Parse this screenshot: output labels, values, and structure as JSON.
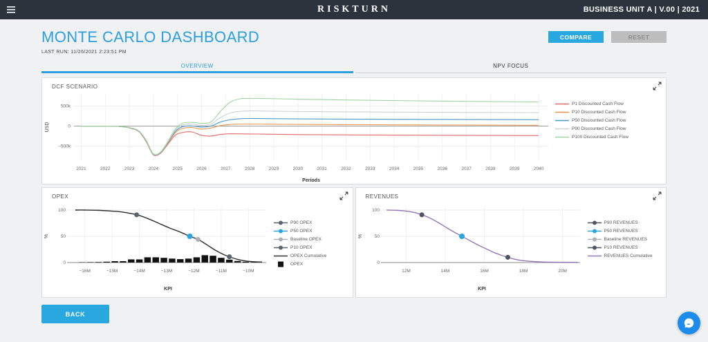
{
  "topbar": {
    "brand": "RISKTURN",
    "context": "BUSINESS UNIT A | V.00 | 2021"
  },
  "header": {
    "title": "MONTE CARLO DASHBOARD",
    "last_run": "LAST RUN: 11/26/2021 2:23:51 PM",
    "compare_label": "COMPARE",
    "reset_label": "RESET",
    "help_label": "?"
  },
  "tabs": [
    {
      "label": "OVERVIEW",
      "active": true
    },
    {
      "label": "NPV FOCUS",
      "active": false
    }
  ],
  "footer": {
    "back_label": "BACK"
  },
  "colors": {
    "accent_blue": "#29a8e0",
    "title_blue": "#2b9fdf",
    "topbar_bg": "#2c333d",
    "panel_border": "#dcdcdc",
    "chat_blue": "#1d8ceb"
  },
  "chart_data": [
    {
      "id": "dcf",
      "type": "line",
      "title": "DCF SCENARIO",
      "xlabel": "Periods",
      "ylabel": "USD",
      "xlim": [
        2020.7,
        2040.4
      ],
      "ylim": [
        -850,
        800
      ],
      "grid": true,
      "legend_position": "right",
      "xticks": [
        2021,
        2022,
        2023,
        2024,
        2025,
        2026,
        2027,
        2028,
        2029,
        2030,
        2031,
        2032,
        2033,
        2034,
        2035,
        2036,
        2037,
        2038,
        2039,
        2040
      ],
      "yticks": [
        {
          "v": 500,
          "label": "500k"
        },
        {
          "v": 0,
          "label": "0"
        },
        {
          "v": -500,
          "label": "−500k"
        }
      ],
      "x": [
        2021,
        2022,
        2022.5,
        2023,
        2023.4,
        2023.7,
        2024,
        2024.3,
        2024.6,
        2024.9,
        2025.2,
        2025.6,
        2026,
        2026.4,
        2026.8,
        2027.2,
        2027.6,
        2028,
        2028.5,
        2029,
        2030,
        2032,
        2035,
        2040
      ],
      "unit": "thousand USD",
      "series": [
        {
          "name": "P1 Discounted Cash Flow",
          "color": "#e26868",
          "values": [
            0,
            0,
            -5,
            -46,
            -140,
            -390,
            -715,
            -672,
            -450,
            -230,
            -160,
            -145,
            -230,
            -245,
            -205,
            -190,
            -192,
            -195,
            -198,
            -203,
            -210,
            -218,
            -226,
            -235
          ]
        },
        {
          "name": "P10 Discounted Cash Flow",
          "color": "#e8954f",
          "values": [
            0,
            0,
            -5,
            -43,
            -135,
            -380,
            -705,
            -662,
            -425,
            -170,
            -60,
            -35,
            -75,
            -45,
            15,
            40,
            50,
            52,
            50,
            47,
            43,
            37,
            30,
            20
          ]
        },
        {
          "name": "P50 Discounted Cash Flow",
          "color": "#4a98c9",
          "values": [
            0,
            0,
            -5,
            -40,
            -130,
            -370,
            -700,
            -655,
            -410,
            -140,
            -15,
            5,
            -25,
            5,
            105,
            160,
            183,
            190,
            188,
            185,
            180,
            174,
            168,
            160
          ]
        },
        {
          "name": "P90 Discounted Cash Flow",
          "color": "#c9d2d8",
          "values": [
            0,
            0,
            -5,
            -38,
            -125,
            -360,
            -695,
            -648,
            -395,
            -110,
            30,
            50,
            20,
            55,
            220,
            330,
            368,
            378,
            376,
            371,
            364,
            355,
            346,
            335
          ]
        },
        {
          "name": "P100 Discounted Cash Flow",
          "color": "#9fd4a2",
          "values": [
            0,
            0,
            -5,
            -35,
            -120,
            -350,
            -690,
            -640,
            -380,
            -80,
            70,
            95,
            70,
            110,
            380,
            600,
            680,
            690,
            688,
            682,
            670,
            650,
            628,
            600
          ]
        }
      ]
    },
    {
      "id": "opex",
      "type": "mixed",
      "title": "OPEX",
      "xlabel": "KPI",
      "ylabel": "%",
      "xlim": [
        -16.55,
        -9.35
      ],
      "ylim": [
        0,
        100
      ],
      "grid": true,
      "legend_position": "right",
      "xticks": [
        {
          "v": -16,
          "label": "−16M"
        },
        {
          "v": -15,
          "label": "−15M"
        },
        {
          "v": -14,
          "label": "−14M"
        },
        {
          "v": -13,
          "label": "−13M"
        },
        {
          "v": -12,
          "label": "−12M"
        },
        {
          "v": -11,
          "label": "−11M"
        },
        {
          "v": -10,
          "label": "−10M"
        }
      ],
      "yticks": [
        {
          "v": 0,
          "label": "0"
        },
        {
          "v": 50,
          "label": "50"
        },
        {
          "v": 100,
          "label": "100"
        }
      ],
      "markers": [
        {
          "name": "P90 OPEX",
          "color": "#5a646c",
          "x": -14.1,
          "y": 91
        },
        {
          "name": "P50 OPEX",
          "color": "#2aa5e0",
          "x": -12.15,
          "y": 50
        },
        {
          "name": "Baseline OPEX",
          "color": "#aab1b7",
          "x": -11.85,
          "y": 44
        },
        {
          "name": "P10 OPEX",
          "color": "#5a646c",
          "x": -10.7,
          "y": 11
        }
      ],
      "cumulative": {
        "name": "OPEX Cumulative",
        "color": "#2b2b2b",
        "points": [
          [
            -16.35,
            100
          ],
          [
            -16,
            100
          ],
          [
            -15.5,
            99.5
          ],
          [
            -15,
            98
          ],
          [
            -14.6,
            96
          ],
          [
            -14.1,
            91
          ],
          [
            -13.7,
            84
          ],
          [
            -13.3,
            75
          ],
          [
            -12.9,
            66
          ],
          [
            -12.5,
            58
          ],
          [
            -12.15,
            50
          ],
          [
            -11.85,
            44
          ],
          [
            -11.5,
            33
          ],
          [
            -11.2,
            23
          ],
          [
            -10.9,
            15
          ],
          [
            -10.7,
            11
          ],
          [
            -10.4,
            6
          ],
          [
            -10.1,
            3
          ],
          [
            -9.8,
            1.5
          ],
          [
            -9.5,
            1
          ]
        ]
      },
      "bars": {
        "name": "OPEX",
        "color": "#121212",
        "width": 0.24,
        "points": [
          [
            -16.1,
            0.6
          ],
          [
            -15.8,
            0.8
          ],
          [
            -15.5,
            1
          ],
          [
            -15.2,
            1.6
          ],
          [
            -14.9,
            2.6
          ],
          [
            -14.6,
            2.6
          ],
          [
            -14.3,
            6
          ],
          [
            -14,
            6
          ],
          [
            -13.7,
            10
          ],
          [
            -13.4,
            10
          ],
          [
            -13.1,
            9
          ],
          [
            -12.8,
            7.5
          ],
          [
            -12.5,
            6.5
          ],
          [
            -12.2,
            7.5
          ],
          [
            -11.9,
            10
          ],
          [
            -11.6,
            14
          ],
          [
            -11.3,
            13
          ],
          [
            -11,
            9
          ],
          [
            -10.7,
            5.5
          ],
          [
            -10.4,
            3
          ],
          [
            -10.1,
            1.6
          ],
          [
            -9.8,
            1
          ]
        ]
      }
    },
    {
      "id": "revenues",
      "type": "mixed",
      "title": "REVENUES",
      "xlabel": "KPI",
      "ylabel": "%",
      "xlim": [
        10.85,
        20.9
      ],
      "ylim": [
        0,
        100
      ],
      "grid": true,
      "legend_position": "right",
      "xticks": [
        {
          "v": 12,
          "label": "12M"
        },
        {
          "v": 14,
          "label": "14M"
        },
        {
          "v": 16,
          "label": "16M"
        },
        {
          "v": 18,
          "label": "18M"
        },
        {
          "v": 20,
          "label": "20M"
        }
      ],
      "yticks": [
        {
          "v": 0,
          "label": "0"
        },
        {
          "v": 50,
          "label": "50"
        },
        {
          "v": 100,
          "label": "100"
        }
      ],
      "markers": [
        {
          "name": "P90 REVENUES",
          "color": "#4d5560",
          "x": 12.8,
          "y": 91
        },
        {
          "name": "P50 REVENUES",
          "color": "#2aa5e0",
          "x": 14.85,
          "y": 50
        },
        {
          "name": "Baseline REVENUES",
          "color": "#aab1b7",
          "x": 14.85,
          "y": 50
        },
        {
          "name": "P10 REVENUES",
          "color": "#4d5560",
          "x": 17.2,
          "y": 10
        }
      ],
      "cumulative": {
        "name": "REVENUES Cumulative",
        "color": "#9577b5",
        "points": [
          [
            11.0,
            100
          ],
          [
            11.5,
            99.5
          ],
          [
            12,
            98
          ],
          [
            12.4,
            95.5
          ],
          [
            12.8,
            91
          ],
          [
            13.2,
            85
          ],
          [
            13.6,
            77
          ],
          [
            14,
            68
          ],
          [
            14.4,
            59
          ],
          [
            14.85,
            50
          ],
          [
            15.3,
            41
          ],
          [
            15.7,
            33
          ],
          [
            16.1,
            26
          ],
          [
            16.5,
            19
          ],
          [
            16.9,
            13.5
          ],
          [
            17.2,
            10
          ],
          [
            17.6,
            6
          ],
          [
            18,
            3.5
          ],
          [
            18.5,
            2
          ],
          [
            19,
            1
          ],
          [
            19.8,
            0.6
          ],
          [
            20.8,
            0.4
          ]
        ]
      }
    }
  ]
}
